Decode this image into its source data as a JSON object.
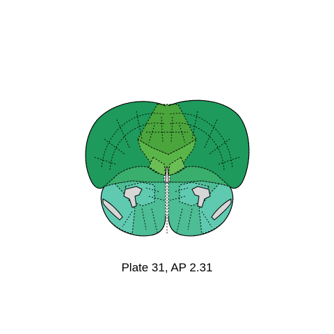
{
  "caption": "Plate 31, AP 2.31",
  "colors": {
    "cortex_dark": "#1e9a5c",
    "cortex_mid": "#279c5e",
    "central_olive": "#4aa53c",
    "central_light": "#5ab548",
    "central_pale": "#6bbd55",
    "lower_teal": "#4cbd94",
    "lower_aqua": "#5fcab0",
    "deep_green": "#3aae6c",
    "ventricle": "#d6d6d6"
  },
  "regions": [
    "cortex-left",
    "cortex-right",
    "central-wedge",
    "septum",
    "striatum-left",
    "striatum-right",
    "ventral-left",
    "ventral-right",
    "lateral-ventricle-left",
    "lateral-ventricle-right",
    "olfactory-ventricle-left",
    "olfactory-ventricle-right"
  ]
}
